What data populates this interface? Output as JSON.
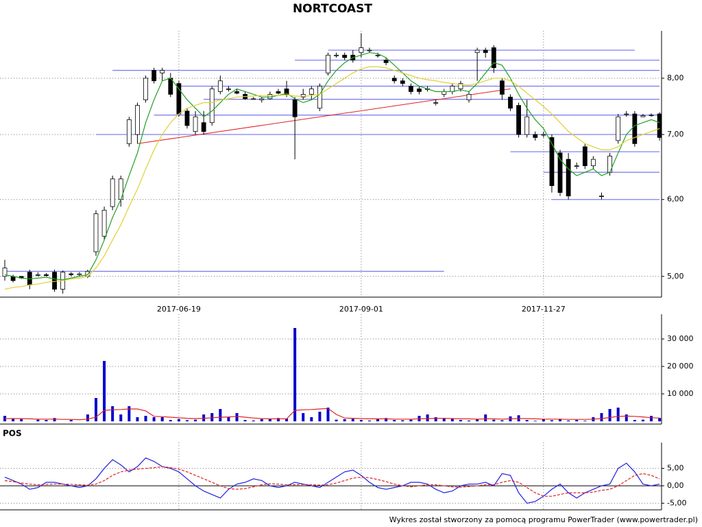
{
  "chart_data": [
    {
      "type": "candlestick",
      "title": "NORTCOAST",
      "categories": [
        null,
        null,
        null,
        null,
        null,
        null,
        null,
        null,
        null,
        null,
        null,
        null,
        null,
        null,
        null,
        null,
        null,
        null,
        null,
        null,
        null,
        "2017-06-19",
        null,
        null,
        null,
        null,
        null,
        null,
        null,
        null,
        null,
        null,
        null,
        null,
        null,
        null,
        null,
        null,
        null,
        null,
        null,
        null,
        null,
        "2017-09-01",
        null,
        null,
        null,
        null,
        null,
        null,
        null,
        null,
        null,
        null,
        null,
        null,
        null,
        null,
        null,
        null,
        null,
        null,
        null,
        null,
        null,
        "2017-11-27",
        null,
        null,
        null,
        null,
        null,
        null,
        null,
        null,
        null,
        null,
        null,
        null,
        null,
        null
      ],
      "ohlc": [
        [
          5.0,
          5.2,
          4.95,
          5.1
        ],
        [
          5.0,
          5.02,
          4.93,
          4.95
        ],
        [
          5.0,
          5.0,
          4.97,
          4.98
        ],
        [
          5.05,
          5.08,
          4.85,
          4.9
        ],
        [
          5.02,
          5.05,
          5.0,
          5.02
        ],
        [
          5.02,
          5.04,
          5.0,
          5.01
        ],
        [
          5.05,
          5.08,
          4.82,
          4.85
        ],
        [
          4.85,
          5.07,
          4.8,
          5.05
        ],
        [
          5.03,
          5.05,
          5.0,
          5.02
        ],
        [
          5.02,
          5.05,
          5.0,
          5.03
        ],
        [
          5.0,
          5.08,
          4.98,
          5.06
        ],
        [
          5.3,
          5.85,
          5.25,
          5.8
        ],
        [
          5.5,
          5.9,
          5.45,
          5.85
        ],
        [
          5.9,
          6.35,
          5.85,
          6.3
        ],
        [
          6.0,
          6.35,
          5.9,
          6.3
        ],
        [
          6.85,
          7.3,
          6.8,
          7.25
        ],
        [
          7.0,
          7.55,
          6.85,
          7.5
        ],
        [
          7.6,
          8.05,
          7.55,
          8.0
        ],
        [
          8.15,
          8.2,
          7.9,
          7.95
        ],
        [
          8.1,
          8.2,
          7.95,
          8.15
        ],
        [
          8.0,
          8.1,
          7.65,
          7.7
        ],
        [
          7.9,
          7.95,
          7.3,
          7.35
        ],
        [
          7.4,
          7.45,
          7.1,
          7.15
        ],
        [
          7.05,
          7.4,
          7.0,
          7.3
        ],
        [
          7.2,
          7.4,
          7.0,
          7.05
        ],
        [
          7.2,
          7.85,
          7.15,
          7.8
        ],
        [
          7.75,
          8.05,
          7.7,
          7.95
        ],
        [
          7.8,
          7.85,
          7.75,
          7.8
        ],
        [
          7.75,
          7.8,
          7.7,
          7.72
        ],
        [
          7.7,
          7.75,
          7.6,
          7.62
        ],
        [
          7.62,
          7.65,
          7.6,
          7.62
        ],
        [
          7.6,
          7.65,
          7.55,
          7.62
        ],
        [
          7.62,
          7.75,
          7.6,
          7.7
        ],
        [
          7.75,
          7.8,
          7.7,
          7.72
        ],
        [
          7.8,
          7.95,
          7.65,
          7.7
        ],
        [
          7.6,
          7.65,
          6.6,
          7.3
        ],
        [
          7.65,
          7.8,
          7.6,
          7.7
        ],
        [
          7.7,
          7.85,
          7.6,
          7.8
        ],
        [
          7.45,
          7.9,
          7.4,
          7.85
        ],
        [
          8.1,
          8.5,
          8.05,
          8.45
        ],
        [
          8.45,
          8.5,
          8.4,
          8.45
        ],
        [
          8.45,
          8.5,
          8.35,
          8.4
        ],
        [
          8.45,
          8.55,
          8.3,
          8.35
        ],
        [
          8.5,
          8.9,
          8.4,
          8.6
        ],
        [
          8.55,
          8.6,
          8.5,
          8.55
        ],
        [
          8.45,
          8.5,
          8.4,
          8.45
        ],
        [
          8.35,
          8.4,
          8.25,
          8.3
        ],
        [
          8.0,
          8.05,
          7.9,
          7.95
        ],
        [
          7.95,
          8.0,
          7.85,
          7.9
        ],
        [
          7.85,
          7.9,
          7.7,
          7.75
        ],
        [
          7.8,
          7.85,
          7.7,
          7.75
        ],
        [
          7.8,
          7.85,
          7.75,
          7.8
        ],
        [
          7.55,
          7.6,
          7.5,
          7.55
        ],
        [
          7.7,
          7.8,
          7.65,
          7.75
        ],
        [
          7.75,
          7.9,
          7.7,
          7.85
        ],
        [
          7.8,
          7.95,
          7.75,
          7.9
        ],
        [
          7.6,
          7.75,
          7.55,
          7.7
        ],
        [
          8.5,
          8.6,
          7.95,
          8.55
        ],
        [
          8.55,
          8.6,
          8.4,
          8.5
        ],
        [
          8.6,
          8.65,
          8.1,
          8.2
        ],
        [
          7.95,
          8.0,
          7.6,
          7.7
        ],
        [
          7.65,
          7.7,
          7.4,
          7.45
        ],
        [
          7.5,
          7.55,
          6.95,
          7.0
        ],
        [
          7.0,
          7.6,
          6.95,
          7.3
        ],
        [
          7.0,
          7.05,
          6.9,
          6.95
        ],
        [
          7.0,
          7.05,
          6.95,
          7.0
        ],
        [
          6.95,
          7.0,
          6.1,
          6.2
        ],
        [
          6.7,
          6.75,
          6.05,
          6.1
        ],
        [
          6.6,
          6.7,
          6.0,
          6.05
        ],
        [
          6.5,
          6.55,
          6.45,
          6.5
        ],
        [
          6.8,
          6.85,
          6.45,
          6.5
        ],
        [
          6.5,
          6.65,
          6.45,
          6.6
        ],
        [
          6.05,
          6.1,
          6.0,
          6.05
        ],
        [
          6.4,
          6.7,
          6.35,
          6.65
        ],
        [
          6.9,
          7.35,
          6.85,
          7.3
        ],
        [
          7.35,
          7.4,
          7.3,
          7.35
        ],
        [
          7.35,
          7.4,
          6.8,
          6.85
        ],
        [
          7.3,
          7.35,
          7.3,
          7.32
        ],
        [
          7.33,
          7.36,
          7.3,
          7.33
        ],
        [
          7.35,
          7.38,
          6.9,
          6.95
        ]
      ],
      "lines": [
        {
          "color": "#22a022",
          "values": [
            5.02,
            5.0,
            4.98,
            4.97,
            4.98,
            4.99,
            4.97,
            4.96,
            4.98,
            5.0,
            5.02,
            5.2,
            5.45,
            5.75,
            6.0,
            6.35,
            6.7,
            7.2,
            7.6,
            7.95,
            8.0,
            7.8,
            7.6,
            7.45,
            7.3,
            7.4,
            7.55,
            7.7,
            7.8,
            7.75,
            7.7,
            7.65,
            7.65,
            7.68,
            7.72,
            7.62,
            7.55,
            7.6,
            7.7,
            7.95,
            8.15,
            8.3,
            8.4,
            8.45,
            8.5,
            8.48,
            8.4,
            8.25,
            8.1,
            7.95,
            7.85,
            7.8,
            7.75,
            7.75,
            7.75,
            7.78,
            7.75,
            7.9,
            8.1,
            8.3,
            8.25,
            8.0,
            7.7,
            7.45,
            7.25,
            7.1,
            6.85,
            6.6,
            6.45,
            6.35,
            6.4,
            6.45,
            6.35,
            6.4,
            6.7,
            7.0,
            7.15,
            7.2,
            7.25,
            7.2
          ]
        },
        {
          "color": "#e0d030",
          "values": [
            4.85,
            4.87,
            4.88,
            4.9,
            4.91,
            4.93,
            4.94,
            4.95,
            4.97,
            4.98,
            5.0,
            5.1,
            5.25,
            5.45,
            5.65,
            5.9,
            6.15,
            6.45,
            6.75,
            7.0,
            7.2,
            7.35,
            7.45,
            7.5,
            7.55,
            7.55,
            7.6,
            7.62,
            7.65,
            7.66,
            7.67,
            7.68,
            7.68,
            7.68,
            7.69,
            7.67,
            7.66,
            7.68,
            7.7,
            7.8,
            7.9,
            8.0,
            8.1,
            8.18,
            8.22,
            8.22,
            8.2,
            8.15,
            8.1,
            8.05,
            8.0,
            7.97,
            7.95,
            7.92,
            7.9,
            7.88,
            7.87,
            7.9,
            7.95,
            8.0,
            8.0,
            7.95,
            7.85,
            7.72,
            7.6,
            7.48,
            7.35,
            7.2,
            7.05,
            6.95,
            6.85,
            6.8,
            6.75,
            6.75,
            6.8,
            6.9,
            6.95,
            7.0,
            7.05,
            7.1
          ]
        }
      ],
      "levels": [
        {
          "value": 8.55,
          "from": 39,
          "to": 76
        },
        {
          "value": 8.35,
          "from": 35,
          "to": 79
        },
        {
          "value": 8.15,
          "from": 13,
          "to": 79
        },
        {
          "value": 7.85,
          "from": 21,
          "to": 79
        },
        {
          "value": 7.61,
          "from": 24,
          "to": 79
        },
        {
          "value": 7.33,
          "from": 18,
          "to": 79
        },
        {
          "value": 7.0,
          "from": 11,
          "to": 79
        },
        {
          "value": 6.72,
          "from": 61,
          "to": 79
        },
        {
          "value": 6.4,
          "from": 65,
          "to": 79
        },
        {
          "value": 6.0,
          "from": 66,
          "to": 79
        },
        {
          "value": 5.06,
          "from": 0,
          "to": 53
        }
      ],
      "level_color": "#8080f0",
      "trendline": {
        "from": [
          16,
          6.85
        ],
        "to": [
          61,
          7.8
        ],
        "color": "#e02020"
      },
      "up_color": "#ffffff",
      "down_color": "#000000",
      "log_scale": true,
      "ylim": [
        4.76,
        8.95
      ],
      "yticks": [
        {
          "value": 5,
          "label": "5,00"
        },
        {
          "value": 6,
          "label": "6,00"
        },
        {
          "value": 7,
          "label": "7,00"
        },
        {
          "value": 8,
          "label": "8,00"
        }
      ],
      "grid": true
    },
    {
      "type": "bar",
      "color": "#0000cc",
      "values": [
        2000,
        1000,
        800,
        0,
        600,
        500,
        1200,
        0,
        500,
        0,
        2500,
        8500,
        22000,
        5500,
        2500,
        5500,
        1500,
        2000,
        1500,
        1500,
        500,
        800,
        400,
        600,
        2500,
        3000,
        4500,
        1500,
        3000,
        500,
        300,
        800,
        900,
        1200,
        1000,
        34000,
        3000,
        1500,
        3500,
        5000,
        600,
        800,
        900,
        500,
        300,
        800,
        1200,
        500,
        400,
        600,
        2000,
        2500,
        1500,
        1200,
        900,
        500,
        300,
        800,
        2500,
        600,
        400,
        1800,
        2200,
        500,
        200,
        800,
        400,
        900,
        300,
        500,
        200,
        1500,
        3000,
        4500,
        5000,
        2500,
        500,
        600,
        2000,
        1200
      ],
      "lines": [
        {
          "color": "#e02020",
          "values": [
            1000,
            1000,
            1000,
            900,
            800,
            800,
            800,
            700,
            700,
            600,
            800,
            1500,
            4000,
            4200,
            4300,
            4500,
            4500,
            3800,
            1800,
            1700,
            1500,
            1300,
            1100,
            1000,
            1100,
            1300,
            1500,
            1600,
            1800,
            1500,
            1200,
            1000,
            900,
            900,
            900,
            4000,
            4200,
            4300,
            4500,
            4700,
            2500,
            1200,
            1100,
            1000,
            900,
            900,
            900,
            800,
            800,
            800,
            900,
            1000,
            1100,
            1100,
            1000,
            900,
            900,
            800,
            900,
            900,
            800,
            900,
            1000,
            1000,
            900,
            800,
            800,
            800,
            700,
            700,
            700,
            800,
            1000,
            1400,
            1800,
            1900,
            1800,
            1600,
            1300,
            1200
          ]
        }
      ],
      "ylim": [
        -1000,
        39000
      ],
      "yticks": [
        {
          "value": 10000,
          "label": "10 000"
        },
        {
          "value": 20000,
          "label": "20 000"
        },
        {
          "value": 30000,
          "label": "30 000"
        }
      ],
      "grid": true
    },
    {
      "type": "line",
      "title": "POS",
      "lines": [
        {
          "color": "#2020e0",
          "dashed": false,
          "values": [
            2.5,
            1.5,
            0.5,
            -1,
            -0.5,
            1,
            1,
            0.5,
            0,
            -0.5,
            0,
            2,
            5,
            7.5,
            6,
            4,
            5.5,
            8,
            7,
            5.5,
            5,
            4,
            2,
            0,
            -1.5,
            -2.5,
            -3.5,
            -1,
            0.5,
            1,
            2,
            1.5,
            0,
            -0.5,
            0,
            1,
            0.5,
            0,
            -0.5,
            1,
            2.5,
            4,
            4.5,
            3,
            1,
            -0.5,
            -1,
            -0.5,
            0,
            1,
            1,
            0.5,
            -1,
            -2,
            -1.5,
            0,
            0.5,
            0.5,
            1,
            0,
            3.5,
            3,
            -2,
            -5,
            -4.5,
            -3,
            -1,
            0.5,
            -2,
            -3.5,
            -2,
            -1,
            0,
            0.5,
            5,
            6.5,
            4,
            0.5,
            0,
            0.5
          ]
        },
        {
          "color": "#e02020",
          "dashed": true,
          "values": [
            1.5,
            1.2,
            0.8,
            0.5,
            0.3,
            0.4,
            0.5,
            0.5,
            0.4,
            0.3,
            0.2,
            0.5,
            1.5,
            3,
            4,
            4.5,
            4.8,
            5,
            5.2,
            5.5,
            5.2,
            4.8,
            4,
            3,
            2,
            1,
            0,
            -0.8,
            -1,
            -0.8,
            -0.3,
            0.3,
            0.6,
            0.5,
            0.3,
            0.3,
            0.4,
            0.3,
            0.2,
            0.3,
            0.8,
            1.5,
            2.2,
            2.5,
            2.3,
            1.8,
            1.2,
            0.5,
            0,
            -0.3,
            0,
            0.3,
            0.3,
            0,
            -0.3,
            -0.4,
            -0.2,
            0,
            0.3,
            0.3,
            1,
            1.5,
            1,
            -0.5,
            -2,
            -3,
            -3,
            -2.5,
            -2,
            -2,
            -2,
            -1.8,
            -1.3,
            -1,
            0,
            1.5,
            3,
            3.5,
            3,
            2
          ]
        }
      ],
      "ylim": [
        -6.9,
        12.4
      ],
      "yticks": [
        {
          "value": -5,
          "label": "-5,00"
        },
        {
          "value": 0,
          "label": "0,00"
        },
        {
          "value": 5,
          "label": "5,00"
        }
      ],
      "zero_line": true,
      "grid": true
    }
  ],
  "footer": "Wykres został stworzony za pomocą programu PowerTrader (www.powertrader.pl)"
}
